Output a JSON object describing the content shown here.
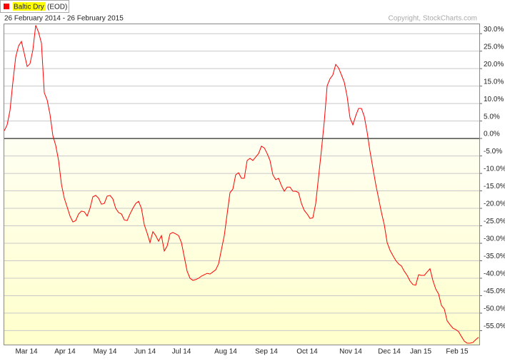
{
  "chart_data": {
    "type": "line",
    "legend_suffix": "(EOD)",
    "subtitle": "26 February 2014 - 26 February 2015",
    "copyright": "Copyright, StockCharts.com",
    "xlim": [
      0,
      166
    ],
    "xticks": [
      {
        "value": 7.75,
        "label": "Mar 14"
      },
      {
        "value": 21.25,
        "label": "Apr 14"
      },
      {
        "value": 35.25,
        "label": "May 14"
      },
      {
        "value": 49.25,
        "label": "Jun 14"
      },
      {
        "value": 62,
        "label": "Jul 14"
      },
      {
        "value": 77.5,
        "label": "Aug 14"
      },
      {
        "value": 91.75,
        "label": "Sep 14"
      },
      {
        "value": 106,
        "label": "Oct 14"
      },
      {
        "value": 121.25,
        "label": "Nov 14"
      },
      {
        "value": 134.75,
        "label": "Dec 14"
      },
      {
        "value": 145.75,
        "label": "Jan 15"
      },
      {
        "value": 158.5,
        "label": "Feb 15"
      }
    ],
    "ylim": [
      -59,
      32.9
    ],
    "yticks": [
      {
        "value": 30,
        "label": "30.0%"
      },
      {
        "value": 25,
        "label": "25.0%"
      },
      {
        "value": 20,
        "label": "20.0%"
      },
      {
        "value": 15,
        "label": "15.0%"
      },
      {
        "value": 10,
        "label": "10.0%"
      },
      {
        "value": 5,
        "label": "5.0%"
      },
      {
        "value": 0,
        "label": "0.0%"
      },
      {
        "value": -5,
        "label": "-5.0%"
      },
      {
        "value": -10,
        "label": "-10.0%"
      },
      {
        "value": -15,
        "label": "-15.0%"
      },
      {
        "value": -20,
        "label": "-20.0%"
      },
      {
        "value": -25,
        "label": "-25.0%"
      },
      {
        "value": -30,
        "label": "-30.0%"
      },
      {
        "value": -35,
        "label": "-35.0%"
      },
      {
        "value": -40,
        "label": "-40.0%"
      },
      {
        "value": -45,
        "label": "-45.0%"
      },
      {
        "value": -50,
        "label": "-50.0%"
      },
      {
        "value": -55,
        "label": "-55.0%"
      }
    ],
    "grid": true,
    "zero_line": true,
    "series": [
      {
        "name": "Baltic Dry",
        "color": "#ff0000",
        "values": [
          2.2,
          3.9,
          8.0,
          16.1,
          23.3,
          26.5,
          27.8,
          24.3,
          20.6,
          21.4,
          25.3,
          32.4,
          30.4,
          27.3,
          13.1,
          11.0,
          6.9,
          0.8,
          -2.0,
          -6.3,
          -13.1,
          -17.1,
          -19.6,
          -22.2,
          -23.9,
          -23.5,
          -21.6,
          -20.8,
          -21.0,
          -22.2,
          -20.0,
          -16.7,
          -16.3,
          -17.1,
          -18.8,
          -18.6,
          -16.5,
          -16.3,
          -17.3,
          -20.0,
          -21.2,
          -21.6,
          -23.3,
          -23.5,
          -21.6,
          -20.0,
          -18.6,
          -18.0,
          -20.0,
          -24.7,
          -27.1,
          -29.8,
          -26.7,
          -27.8,
          -29.4,
          -27.8,
          -32.2,
          -30.8,
          -27.3,
          -26.9,
          -27.3,
          -27.8,
          -29.8,
          -33.9,
          -38.0,
          -40.0,
          -40.6,
          -40.4,
          -40.0,
          -39.4,
          -39.0,
          -38.6,
          -38.8,
          -38.2,
          -37.6,
          -35.9,
          -31.8,
          -27.8,
          -21.6,
          -15.5,
          -14.5,
          -10.4,
          -9.8,
          -11.4,
          -11.4,
          -6.3,
          -5.7,
          -6.3,
          -5.3,
          -4.3,
          -2.2,
          -2.7,
          -4.3,
          -6.3,
          -10.4,
          -11.8,
          -11.4,
          -13.5,
          -15.1,
          -13.9,
          -13.9,
          -15.1,
          -15.1,
          -15.5,
          -18.6,
          -20.6,
          -21.6,
          -22.9,
          -22.7,
          -18.6,
          -11.0,
          -3.3,
          4.9,
          15.1,
          17.1,
          18.2,
          21.2,
          20.2,
          18.2,
          16.1,
          12.0,
          5.9,
          3.9,
          6.5,
          8.6,
          8.6,
          6.3,
          1.8,
          -3.7,
          -8.4,
          -13.1,
          -17.1,
          -21.2,
          -24.7,
          -29.8,
          -32.0,
          -33.5,
          -34.9,
          -35.9,
          -36.5,
          -38.0,
          -39.2,
          -40.8,
          -41.8,
          -42.0,
          -39.0,
          -39.2,
          -39.2,
          -38.2,
          -37.3,
          -40.6,
          -43.1,
          -44.5,
          -47.8,
          -48.8,
          -52.2,
          -53.3,
          -54.3,
          -54.7,
          -55.3,
          -56.7,
          -58.0,
          -58.6,
          -58.6,
          -58.4,
          -57.6,
          -56.9
        ]
      }
    ]
  }
}
